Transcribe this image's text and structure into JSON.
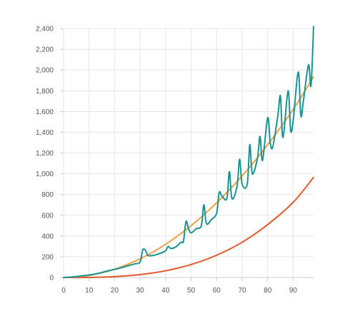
{
  "chart_data": {
    "type": "line",
    "title": "",
    "xlabel": "",
    "ylabel": "",
    "xlim": [
      0,
      98
    ],
    "ylim": [
      0,
      2400
    ],
    "x_ticks": [
      0,
      10,
      20,
      30,
      40,
      50,
      60,
      70,
      80,
      90
    ],
    "y_ticks": [
      0,
      200,
      400,
      600,
      800,
      1000,
      1200,
      1400,
      1600,
      1800,
      2000,
      2200,
      2400
    ],
    "grid": true,
    "legend": "none",
    "colors": {
      "grid": "#e6e6e6",
      "axis": "#cccccc",
      "tick_text": "#555555"
    },
    "series": [
      {
        "color": "#1a9391",
        "x": [
          0,
          2,
          4,
          6,
          8,
          10,
          12,
          14,
          16,
          18,
          20,
          22,
          24,
          26,
          28,
          30,
          31,
          32,
          33,
          34,
          36,
          38,
          40,
          41,
          42,
          44,
          46,
          47,
          48,
          49,
          50,
          52,
          54,
          55,
          56,
          58,
          60,
          61,
          62,
          64,
          65,
          66,
          68,
          69,
          70,
          72,
          73,
          74,
          76,
          77,
          78,
          80,
          81,
          82,
          84,
          85,
          86,
          88,
          89,
          90,
          92,
          93,
          94,
          96,
          97,
          98
        ],
        "y": [
          0,
          3,
          7,
          12,
          18,
          24,
          32,
          42,
          55,
          68,
          78,
          90,
          104,
          118,
          132,
          150,
          265,
          265,
          215,
          210,
          218,
          235,
          258,
          300,
          280,
          295,
          340,
          350,
          540,
          470,
          430,
          470,
          500,
          700,
          520,
          560,
          620,
          820,
          790,
          760,
          1020,
          760,
          880,
          1140,
          900,
          900,
          1280,
          1000,
          1150,
          1360,
          1130,
          1540,
          1300,
          1260,
          1560,
          1750,
          1350,
          1800,
          1420,
          1510,
          1980,
          1560,
          1700,
          2050,
          1850,
          2420
        ]
      },
      {
        "color": "#f0a043",
        "x": [
          0,
          10,
          20,
          30,
          40,
          50,
          60,
          70,
          80,
          90,
          98
        ],
        "y": [
          0,
          20,
          80,
          180,
          320,
          500,
          720,
          980,
          1280,
          1620,
          1935
        ]
      },
      {
        "color": "#e2592b",
        "x": [
          0,
          10,
          20,
          30,
          40,
          50,
          60,
          70,
          80,
          90,
          98
        ],
        "y": [
          0,
          1,
          8,
          28,
          65,
          125,
          215,
          340,
          510,
          725,
          965
        ]
      }
    ]
  }
}
